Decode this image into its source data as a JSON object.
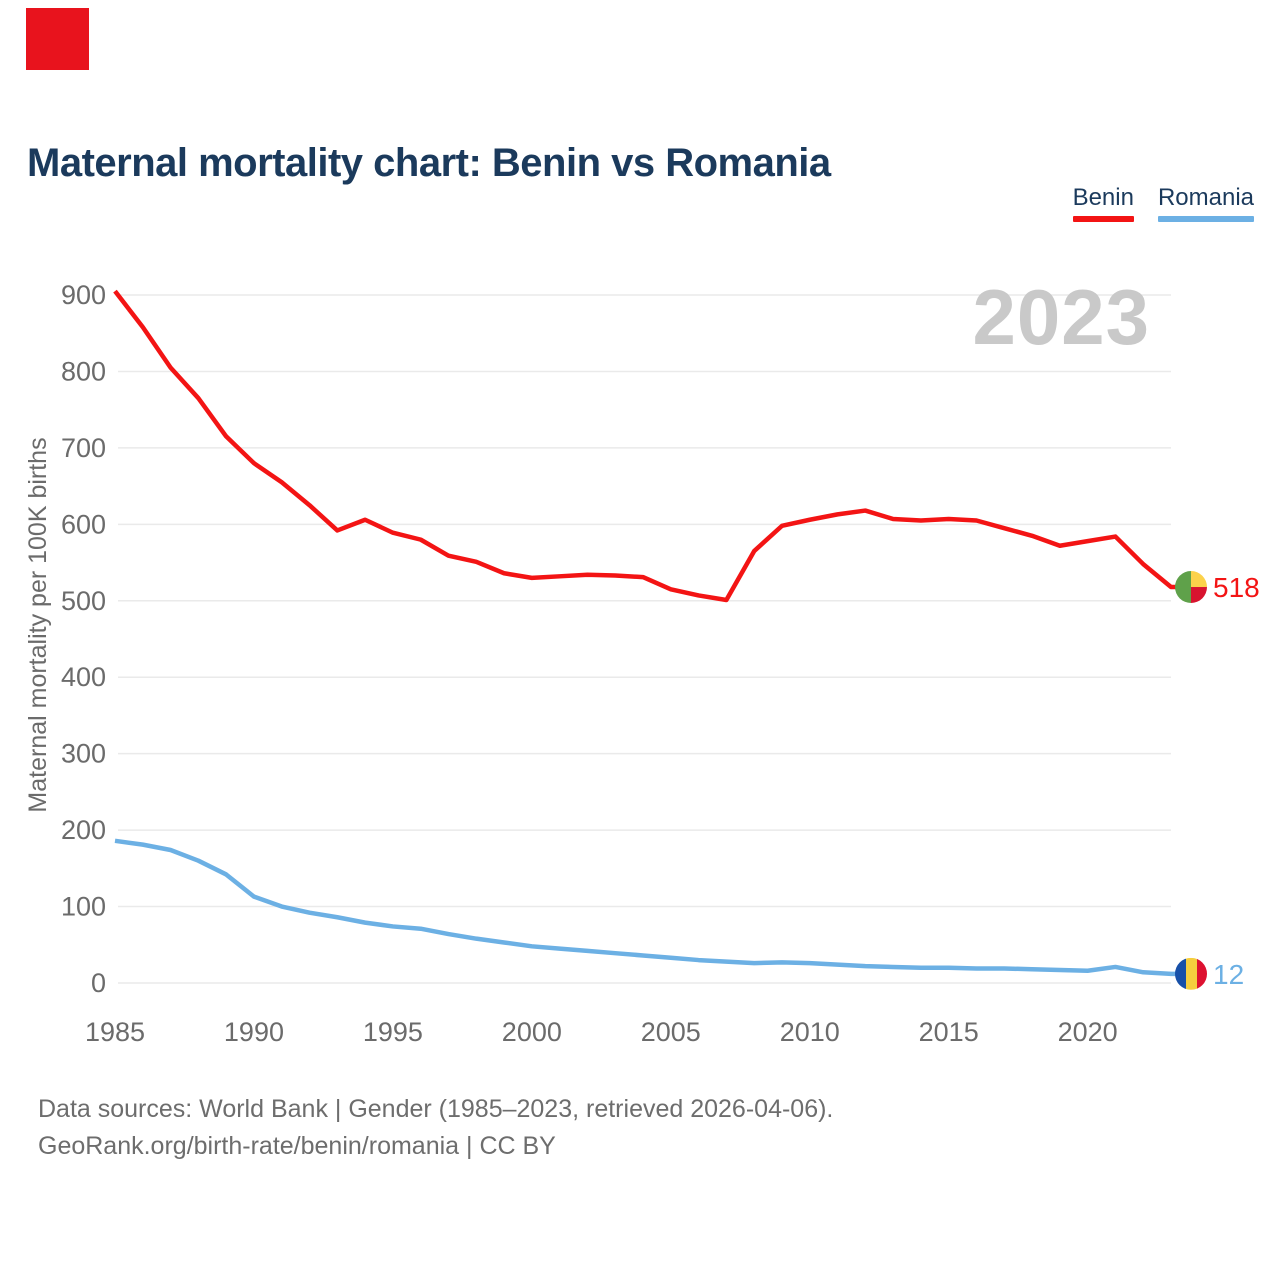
{
  "header": {
    "title": "Maternal mortality chart: Benin vs Romania"
  },
  "legend": [
    {
      "label": "Benin",
      "color": "#f31414"
    },
    {
      "label": "Romania",
      "color": "#6cb0e4"
    }
  ],
  "watermark": "2023",
  "chart_data": {
    "type": "line",
    "title": "Maternal mortality chart: Benin vs Romania",
    "xlabel": "",
    "ylabel": "Maternal mortality per 100K births",
    "xlim": [
      1985,
      2023
    ],
    "ylim": [
      0,
      910
    ],
    "y_ticks": [
      0,
      100,
      200,
      300,
      400,
      500,
      600,
      700,
      800,
      900
    ],
    "x_ticks": [
      1985,
      1990,
      1995,
      2000,
      2005,
      2010,
      2015,
      2020
    ],
    "grid": "horizontal",
    "legend_position": "top-right",
    "x": [
      1985,
      1986,
      1987,
      1988,
      1989,
      1990,
      1991,
      1992,
      1993,
      1994,
      1995,
      1996,
      1997,
      1998,
      1999,
      2000,
      2001,
      2002,
      2003,
      2004,
      2005,
      2006,
      2007,
      2008,
      2009,
      2010,
      2011,
      2012,
      2013,
      2014,
      2015,
      2016,
      2017,
      2018,
      2019,
      2020,
      2021,
      2022,
      2023
    ],
    "series": [
      {
        "name": "Benin",
        "flag": "benin",
        "color": "#f31414",
        "end_label": "518",
        "values": [
          905,
          858,
          805,
          765,
          715,
          680,
          655,
          625,
          592,
          606,
          589,
          580,
          559,
          551,
          536,
          530,
          532,
          534,
          533,
          531,
          515,
          507,
          501,
          565,
          598,
          606,
          613,
          618,
          607,
          605,
          607,
          605,
          595,
          585,
          572,
          578,
          584,
          548,
          518
        ]
      },
      {
        "name": "Romania",
        "flag": "romania",
        "color": "#6cb0e4",
        "end_label": "12",
        "values": [
          186,
          181,
          174,
          160,
          142,
          113,
          100,
          92,
          86,
          79,
          74,
          71,
          64,
          58,
          53,
          48,
          45,
          42,
          39,
          36,
          33,
          30,
          28,
          26,
          27,
          26,
          24,
          22,
          21,
          20,
          20,
          19,
          19,
          18,
          17,
          16,
          21,
          14,
          12
        ]
      }
    ]
  },
  "flags": {
    "benin": {
      "green": "#5fa14a",
      "yellow": "#fcd24b",
      "red": "#d8142f"
    },
    "romania": {
      "blue": "#1750a8",
      "yellow": "#f5ce3e",
      "red": "#dd1130"
    }
  },
  "footer": {
    "line1": "Data sources: World Bank | Gender (1985–2023, retrieved 2026-04-06).",
    "line2": "GeoRank.org/birth-rate/benin/romania | CC BY"
  },
  "colors": {
    "title-color": "#1b3a5c",
    "axis-text": "#6b6b6b",
    "grid-color": "#eaeaea",
    "watermark-color": "#c9c9c9",
    "footer-text": "#6d6d6d",
    "logo-red": "#e8131d",
    "background": "#ffffff"
  }
}
